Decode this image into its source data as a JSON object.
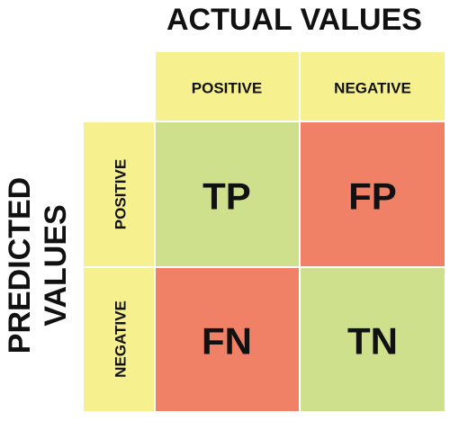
{
  "title": "ACTUAL VALUES",
  "row_title": [
    "PREDICTED",
    "VALUES"
  ],
  "columns": [
    "POSITIVE",
    "NEGATIVE"
  ],
  "rows": [
    "POSITIVE",
    "NEGATIVE"
  ],
  "cells": [
    [
      "TP",
      "FP"
    ],
    [
      "FN",
      "TN"
    ]
  ]
}
